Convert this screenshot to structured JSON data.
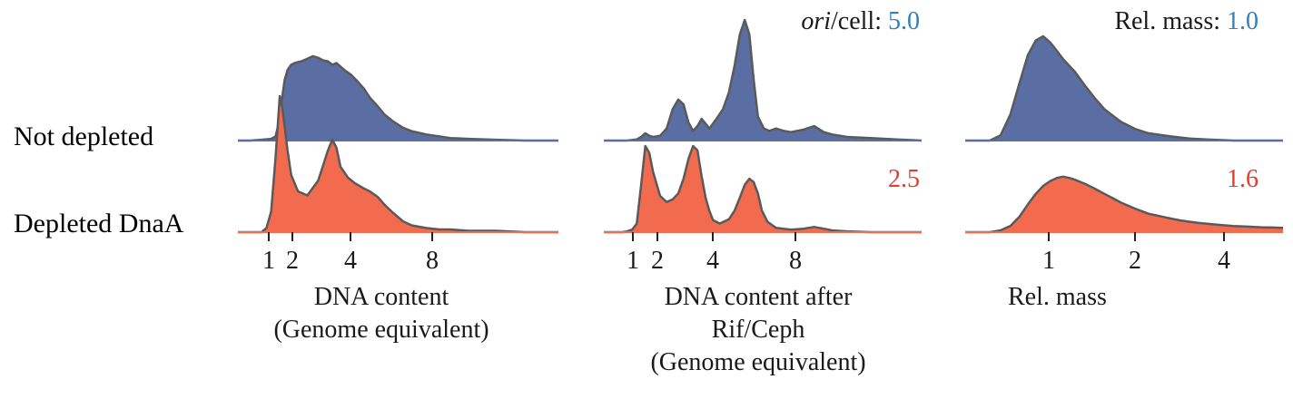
{
  "colors": {
    "not_depleted": "#5a6ea3",
    "depleted": "#f26b4e",
    "outline": "#5a5a5a",
    "label_blue": "#1f4e96",
    "label_red": "#e8392b",
    "value_blue": "#2f7fc1",
    "value_red": "#e8392b",
    "text": "#1a1a1a"
  },
  "row_labels": {
    "top": "Not depleted",
    "bottom": "Depleted DnaA"
  },
  "chart_data": [
    {
      "type": "area",
      "xscale": "log2",
      "xlim": [
        0.6,
        30
      ],
      "xticks": [
        1,
        2,
        4,
        8
      ],
      "xtick_labels": [
        "1",
        "2",
        "4",
        "8"
      ],
      "xlabel": [
        "DNA content",
        "(Genome equivalent)"
      ],
      "stat_label": "",
      "stat_label_italic": "",
      "series": [
        {
          "x": [
            0.6,
            0.7,
            0.8,
            0.9,
            0.95,
            1.0,
            1.03,
            1.06,
            1.1,
            1.15,
            1.2,
            1.3,
            1.4,
            1.5,
            1.6,
            1.7,
            1.8,
            1.9,
            2.0,
            2.2,
            2.4,
            2.6,
            2.8,
            3.0,
            3.3,
            3.6,
            4.0,
            4.5,
            5.0,
            6.0,
            7.0,
            8.0,
            10.0,
            14.0,
            20.0,
            30.0
          ],
          "y": [
            0.0,
            0.0,
            0.01,
            0.02,
            0.05,
            0.25,
            0.5,
            0.7,
            0.82,
            0.88,
            0.9,
            0.92,
            0.95,
            0.98,
            0.96,
            0.93,
            0.92,
            0.88,
            0.9,
            0.82,
            0.76,
            0.68,
            0.6,
            0.5,
            0.4,
            0.3,
            0.22,
            0.15,
            0.11,
            0.07,
            0.05,
            0.03,
            0.02,
            0.01,
            0.0,
            0.0
          ]
        },
        {
          "x": [
            0.6,
            0.7,
            0.8,
            0.85,
            0.9,
            0.95,
            1.0,
            1.03,
            1.06,
            1.1,
            1.15,
            1.25,
            1.4,
            1.6,
            1.8,
            1.9,
            2.0,
            2.1,
            2.3,
            2.5,
            2.8,
            3.0,
            3.3,
            3.6,
            4.0,
            4.5,
            5.0,
            6.0,
            7.0,
            8.0,
            10.0,
            14.0,
            20.0,
            30.0
          ],
          "y": [
            0.0,
            0.0,
            0.0,
            0.03,
            0.15,
            0.55,
            1.0,
            0.92,
            0.78,
            0.6,
            0.42,
            0.3,
            0.27,
            0.38,
            0.6,
            0.68,
            0.62,
            0.48,
            0.4,
            0.36,
            0.32,
            0.3,
            0.26,
            0.2,
            0.14,
            0.08,
            0.05,
            0.03,
            0.02,
            0.02,
            0.01,
            0.01,
            0.0,
            0.0
          ]
        }
      ]
    },
    {
      "type": "area",
      "xscale": "log2",
      "xlim": [
        0.6,
        30
      ],
      "xticks": [
        1,
        2,
        4,
        8
      ],
      "xtick_labels": [
        "1",
        "2",
        "4",
        "8"
      ],
      "xlabel": [
        "DNA content after",
        "Rif/Ceph",
        "(Genome equivalent)"
      ],
      "stat_label": "/cell: ",
      "stat_label_italic": "ori",
      "series": [
        {
          "x": [
            0.6,
            0.8,
            0.9,
            0.95,
            1.0,
            1.05,
            1.1,
            1.2,
            1.3,
            1.4,
            1.5,
            1.6,
            1.7,
            1.8,
            1.9,
            2.0,
            2.1,
            2.2,
            2.4,
            2.6,
            2.8,
            3.0,
            3.2,
            3.4,
            3.6,
            3.8,
            4.0,
            4.3,
            4.6,
            5.0,
            5.5,
            6.0,
            7.0,
            8.0,
            9.0,
            10.0,
            12.0,
            16.0,
            22.0,
            30.0
          ],
          "y": [
            0.0,
            0.0,
            0.01,
            0.03,
            0.06,
            0.04,
            0.03,
            0.04,
            0.1,
            0.26,
            0.34,
            0.3,
            0.15,
            0.08,
            0.12,
            0.18,
            0.14,
            0.1,
            0.18,
            0.26,
            0.4,
            0.62,
            0.88,
            1.0,
            0.88,
            0.5,
            0.2,
            0.1,
            0.08,
            0.1,
            0.08,
            0.07,
            0.09,
            0.12,
            0.07,
            0.05,
            0.03,
            0.02,
            0.01,
            0.0
          ]
        },
        {
          "x": [
            0.6,
            0.75,
            0.8,
            0.85,
            0.9,
            0.95,
            1.0,
            1.05,
            1.1,
            1.2,
            1.3,
            1.4,
            1.5,
            1.6,
            1.7,
            1.8,
            1.9,
            2.0,
            2.1,
            2.2,
            2.3,
            2.5,
            2.8,
            3.0,
            3.2,
            3.4,
            3.6,
            3.8,
            4.0,
            4.2,
            4.5,
            5.0,
            6.0,
            7.0,
            8.0,
            9.0,
            10.0,
            12.0,
            16.0,
            22.0,
            30.0
          ],
          "y": [
            0.0,
            0.0,
            0.01,
            0.03,
            0.1,
            0.55,
            1.0,
            0.92,
            0.7,
            0.42,
            0.35,
            0.38,
            0.45,
            0.62,
            0.85,
            1.0,
            0.95,
            0.65,
            0.4,
            0.25,
            0.14,
            0.1,
            0.15,
            0.25,
            0.4,
            0.55,
            0.62,
            0.58,
            0.45,
            0.25,
            0.12,
            0.05,
            0.03,
            0.04,
            0.06,
            0.04,
            0.02,
            0.01,
            0.0,
            0.0,
            0.0
          ]
        }
      ]
    },
    {
      "type": "area",
      "xscale": "log2",
      "xlim": [
        0.45,
        6
      ],
      "xticks": [
        1,
        2,
        4
      ],
      "xtick_labels": [
        "1",
        "2",
        "4"
      ],
      "xlabel": [
        "Rel. mass"
      ],
      "stat_label": "Rel. mass: ",
      "stat_label_italic": "",
      "series": [
        {
          "x": [
            0.45,
            0.55,
            0.6,
            0.65,
            0.7,
            0.75,
            0.8,
            0.85,
            0.9,
            0.95,
            1.0,
            1.1,
            1.2,
            1.3,
            1.4,
            1.6,
            1.8,
            2.0,
            2.4,
            2.8,
            3.2,
            4.0,
            5.0,
            6.0
          ],
          "y": [
            0.0,
            0.0,
            0.05,
            0.25,
            0.55,
            0.82,
            0.96,
            1.0,
            0.94,
            0.86,
            0.78,
            0.66,
            0.52,
            0.4,
            0.3,
            0.18,
            0.11,
            0.07,
            0.04,
            0.02,
            0.01,
            0.0,
            0.0,
            0.0
          ]
        },
        {
          "x": [
            0.45,
            0.55,
            0.6,
            0.65,
            0.7,
            0.75,
            0.8,
            0.85,
            0.9,
            0.95,
            1.0,
            1.05,
            1.1,
            1.2,
            1.3,
            1.4,
            1.5,
            1.6,
            1.8,
            2.0,
            2.3,
            2.6,
            3.0,
            3.5,
            4.0,
            4.5,
            5.0,
            6.0
          ],
          "y": [
            0.0,
            0.0,
            0.03,
            0.1,
            0.25,
            0.45,
            0.62,
            0.75,
            0.83,
            0.88,
            0.9,
            0.88,
            0.85,
            0.78,
            0.7,
            0.62,
            0.55,
            0.48,
            0.38,
            0.3,
            0.24,
            0.19,
            0.15,
            0.12,
            0.1,
            0.09,
            0.08,
            0.07
          ]
        }
      ]
    }
  ],
  "panel_values": [
    {
      "top": "",
      "bottom": ""
    },
    {
      "top": "5.0",
      "bottom": "2.5"
    },
    {
      "top": "1.0",
      "bottom": "1.6"
    }
  ]
}
